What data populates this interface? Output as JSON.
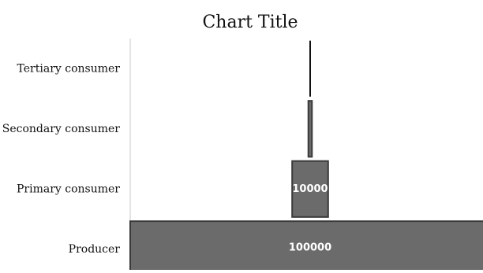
{
  "chart_data": {
    "type": "bar",
    "orientation": "horizontal",
    "layout": "centered-pyramid",
    "title": "Chart Title",
    "categories": [
      "Producer",
      "Primary consumer",
      "Secondary consumer",
      "Tertiary consumer"
    ],
    "values": [
      100000,
      10000,
      1000,
      100
    ],
    "data_labels": [
      "100000",
      "10000",
      "",
      ""
    ],
    "xlabel": "",
    "ylabel": "",
    "grid": false,
    "legend": "none",
    "bar_color": "#6b6b6b",
    "bar_border_color": "#3a3a3a",
    "label_color": "#ffffff",
    "axis_color": "#c8c8c8"
  }
}
